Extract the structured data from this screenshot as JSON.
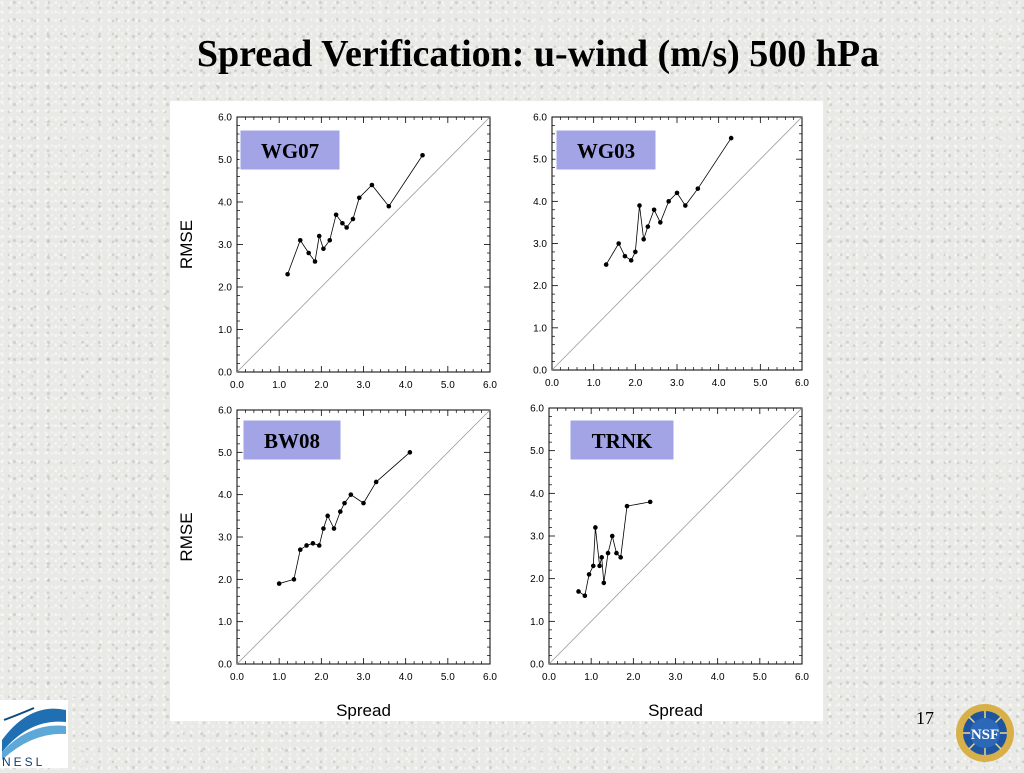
{
  "slide": {
    "title": "Spread Verification: u-wind (m/s) 500 hPa",
    "page_number": "17"
  },
  "logos": {
    "left": "NESL",
    "right": "NSF"
  },
  "colors": {
    "label_box": "#a2a4e6",
    "data": "#000000",
    "diagonal": "#9a9a9a"
  },
  "chart_data": [
    {
      "type": "line",
      "label": "WG07",
      "xlabel": "",
      "ylabel": "RMSE",
      "xlim": [
        0,
        6
      ],
      "ylim": [
        0,
        6
      ],
      "ticks": [
        "0.0",
        "1.0",
        "2.0",
        "3.0",
        "4.0",
        "5.0",
        "6.0"
      ],
      "reference_line": "y = x",
      "x": [
        1.2,
        1.5,
        1.7,
        1.85,
        1.95,
        2.05,
        2.2,
        2.35,
        2.5,
        2.6,
        2.75,
        2.9,
        3.2,
        3.6,
        4.4
      ],
      "y": [
        2.3,
        3.1,
        2.8,
        2.6,
        3.2,
        2.9,
        3.1,
        3.7,
        3.5,
        3.4,
        3.6,
        4.1,
        4.4,
        3.9,
        5.1
      ]
    },
    {
      "type": "line",
      "label": "WG03",
      "xlabel": "",
      "ylabel": "",
      "xlim": [
        0,
        6
      ],
      "ylim": [
        0,
        6
      ],
      "ticks": [
        "0.0",
        "1.0",
        "2.0",
        "3.0",
        "4.0",
        "5.0",
        "6.0"
      ],
      "reference_line": "y = x",
      "x": [
        1.3,
        1.6,
        1.75,
        1.9,
        2.0,
        2.1,
        2.2,
        2.3,
        2.45,
        2.6,
        2.8,
        3.0,
        3.2,
        3.5,
        4.3
      ],
      "y": [
        2.5,
        3.0,
        2.7,
        2.6,
        2.8,
        3.9,
        3.1,
        3.4,
        3.8,
        3.5,
        4.0,
        4.2,
        3.9,
        4.3,
        5.5
      ]
    },
    {
      "type": "line",
      "label": "BW08",
      "xlabel": "Spread",
      "ylabel": "RMSE",
      "xlim": [
        0,
        6
      ],
      "ylim": [
        0,
        6
      ],
      "ticks": [
        "0.0",
        "1.0",
        "2.0",
        "3.0",
        "4.0",
        "5.0",
        "6.0"
      ],
      "reference_line": "y = x",
      "x": [
        1.0,
        1.35,
        1.5,
        1.65,
        1.8,
        1.95,
        2.05,
        2.15,
        2.3,
        2.45,
        2.55,
        2.7,
        3.0,
        3.3,
        4.1
      ],
      "y": [
        1.9,
        2.0,
        2.7,
        2.8,
        2.85,
        2.8,
        3.2,
        3.5,
        3.2,
        3.6,
        3.8,
        4.0,
        3.8,
        4.3,
        5.0
      ]
    },
    {
      "type": "line",
      "label": "TRNK",
      "xlabel": "Spread",
      "ylabel": "",
      "xlim": [
        0,
        6
      ],
      "ylim": [
        0,
        6
      ],
      "ticks": [
        "0.0",
        "1.0",
        "2.0",
        "3.0",
        "4.0",
        "5.0",
        "6.0"
      ],
      "reference_line": "y = x",
      "x": [
        0.7,
        0.85,
        0.95,
        1.05,
        1.1,
        1.2,
        1.25,
        1.3,
        1.4,
        1.5,
        1.6,
        1.7,
        1.85,
        2.4
      ],
      "y": [
        1.7,
        1.6,
        2.1,
        2.3,
        3.2,
        2.3,
        2.5,
        1.9,
        2.6,
        3.0,
        2.6,
        2.5,
        3.7,
        3.8
      ]
    }
  ]
}
